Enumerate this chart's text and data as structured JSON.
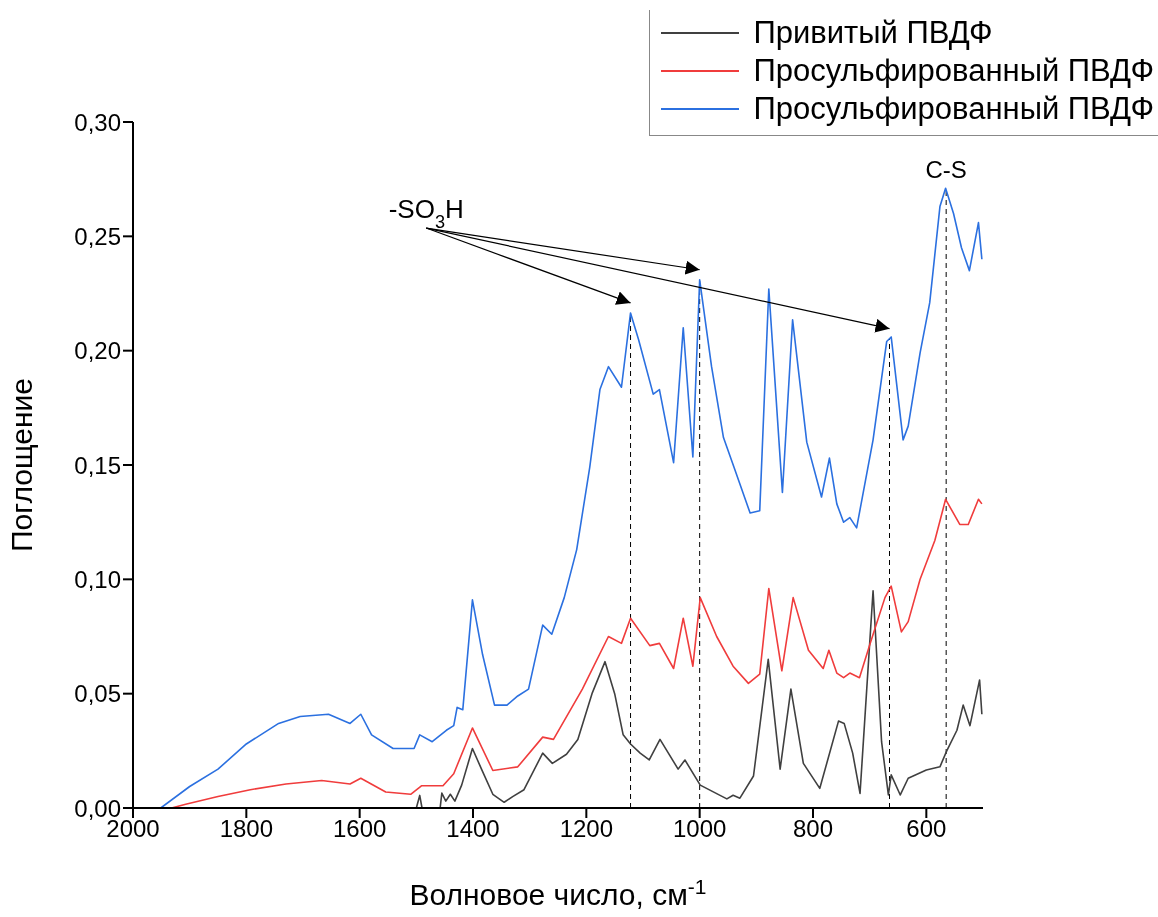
{
  "chart_data": {
    "type": "line",
    "xlabel": "Волновое число, см$^{-1}$",
    "ylabel": "Поглощение",
    "xlim": [
      2000,
      500
    ],
    "ylim": [
      0,
      0.3
    ],
    "xticks": [
      2000,
      1800,
      1600,
      1400,
      1200,
      1000,
      800,
      600
    ],
    "yticks": [
      {
        "value": 0,
        "label": "0,00"
      },
      {
        "value": 0.05,
        "label": "0,05"
      },
      {
        "value": 0.1,
        "label": "0,10"
      },
      {
        "value": 0.15,
        "label": "0,15"
      },
      {
        "value": 0.2,
        "label": "0,20"
      },
      {
        "value": 0.25,
        "label": "0,25"
      },
      {
        "value": 0.3,
        "label": "0,30"
      }
    ],
    "legend": "top right",
    "grid": false,
    "marker": "none",
    "line_style": "solid",
    "annotations": [
      "-SO$_{3}$H"
    ],
    "ref_lines": [
      {
        "axis": "x",
        "value": 1122,
        "label": null,
        "line_style": "dashed",
        "color": "#000000"
      },
      {
        "axis": "x",
        "value": 1000,
        "label": null,
        "line_style": "dashed",
        "color": "#000000"
      },
      {
        "axis": "x",
        "value": 665,
        "label": null,
        "line_style": "dashed",
        "color": "#000000"
      },
      {
        "axis": "x",
        "value": 565,
        "label": "C-S",
        "line_style": "dashed",
        "color": "#000000"
      }
    ],
    "series": [
      {
        "name": "Привитый ПВДФ",
        "color": "#404040",
        "x": [
          1500,
          1494,
          1490,
          1475,
          1458,
          1455,
          1448,
          1440,
          1432,
          1420,
          1401,
          1385,
          1365,
          1345,
          1330,
          1310,
          1277,
          1260,
          1235,
          1215,
          1190,
          1167,
          1150,
          1135,
          1122,
          1105,
          1089,
          1070,
          1038,
          1026,
          999,
          952,
          941,
          929,
          905,
          879,
          858,
          839,
          817,
          788,
          755,
          745,
          730,
          717,
          694,
          679,
          667,
          662,
          646,
          632,
          600,
          576,
          564,
          546,
          535,
          523,
          506,
          502
        ],
        "values": [
          0,
          0.0055,
          0,
          null,
          0,
          0.0065,
          0.003,
          0.006,
          0.003,
          0.01,
          0.026,
          0.017,
          0.006,
          0.0025,
          0.005,
          0.008,
          0.024,
          0.0195,
          0.0235,
          0.03,
          0.05,
          0.064,
          0.05,
          0.032,
          0.028,
          0.024,
          0.021,
          0.03,
          0.017,
          0.021,
          0.01,
          0.004,
          0.0056,
          0.0043,
          0.014,
          0.065,
          0.017,
          0.052,
          0.0195,
          0.0086,
          0.038,
          0.037,
          0.024,
          0.0064,
          0.095,
          0.029,
          0.0057,
          0.0145,
          0.0057,
          0.013,
          0.0166,
          0.018,
          0.025,
          0.034,
          0.045,
          0.036,
          0.056,
          0.041
        ]
      },
      {
        "name": "Просульфированный ПВДФ",
        "color": "#f03c3c",
        "x": [
          1932,
          1907,
          1850,
          1793,
          1730,
          1667,
          1617,
          1598,
          1554,
          1510,
          1491,
          1453,
          1434,
          1401,
          1365,
          1321,
          1277,
          1258,
          1207,
          1161,
          1138,
          1122,
          1088,
          1071,
          1046,
          1029,
          1012,
          999,
          970,
          941,
          914,
          894,
          878,
          855,
          835,
          808,
          782,
          772,
          758,
          746,
          735,
          718,
          699,
          673,
          662,
          644,
          632,
          611,
          585,
          566,
          541,
          526,
          508,
          502
        ],
        "values": [
          0,
          0.0016,
          0.005,
          0.008,
          0.0105,
          0.012,
          0.0105,
          0.013,
          0.007,
          0.006,
          0.0097,
          0.0097,
          0.015,
          0.035,
          0.0164,
          0.018,
          0.031,
          0.03,
          0.052,
          0.075,
          0.072,
          0.083,
          0.071,
          0.072,
          0.061,
          0.083,
          0.062,
          0.092,
          0.075,
          0.062,
          0.0545,
          0.0585,
          0.096,
          0.06,
          0.092,
          0.069,
          0.061,
          0.069,
          0.059,
          0.057,
          0.059,
          0.057,
          0.072,
          0.092,
          0.097,
          0.077,
          0.0815,
          0.1,
          0.117,
          0.135,
          0.124,
          0.124,
          0.135,
          0.133
        ]
      },
      {
        "name": "Просульфированный ПВДФ",
        "color": "#2b70e0",
        "x": [
          1951,
          1900,
          1850,
          1800,
          1743,
          1705,
          1655,
          1617,
          1598,
          1579,
          1541,
          1504,
          1494,
          1472,
          1447,
          1434,
          1428,
          1418,
          1401,
          1383,
          1362,
          1340,
          1321,
          1302,
          1277,
          1261,
          1239,
          1217,
          1194,
          1176,
          1161,
          1138,
          1122,
          1108,
          1082,
          1071,
          1046,
          1029,
          1012,
          1000,
          979,
          958,
          938,
          911,
          894,
          878,
          854,
          836,
          811,
          785,
          771,
          758,
          746,
          735,
          723,
          694,
          670,
          662,
          641,
          632,
          611,
          594,
          576,
          566,
          552,
          538,
          524,
          508,
          502
        ],
        "values": [
          0,
          0.0094,
          0.017,
          0.028,
          0.037,
          0.04,
          0.041,
          0.037,
          0.041,
          0.032,
          0.026,
          0.026,
          0.032,
          0.029,
          0.034,
          0.036,
          0.044,
          0.043,
          0.091,
          0.067,
          0.045,
          0.045,
          0.049,
          0.052,
          0.08,
          0.076,
          0.092,
          0.113,
          0.149,
          0.183,
          0.193,
          0.184,
          0.2165,
          0.205,
          0.181,
          0.183,
          0.151,
          0.21,
          0.1535,
          0.231,
          0.193,
          0.162,
          0.148,
          0.129,
          0.13,
          0.227,
          0.138,
          0.2135,
          0.16,
          0.136,
          0.153,
          0.133,
          0.125,
          0.127,
          0.1225,
          0.161,
          0.204,
          0.206,
          0.161,
          0.167,
          0.199,
          0.221,
          0.263,
          0.271,
          0.26,
          0.245,
          0.235,
          0.256,
          0.24
        ]
      }
    ]
  }
}
